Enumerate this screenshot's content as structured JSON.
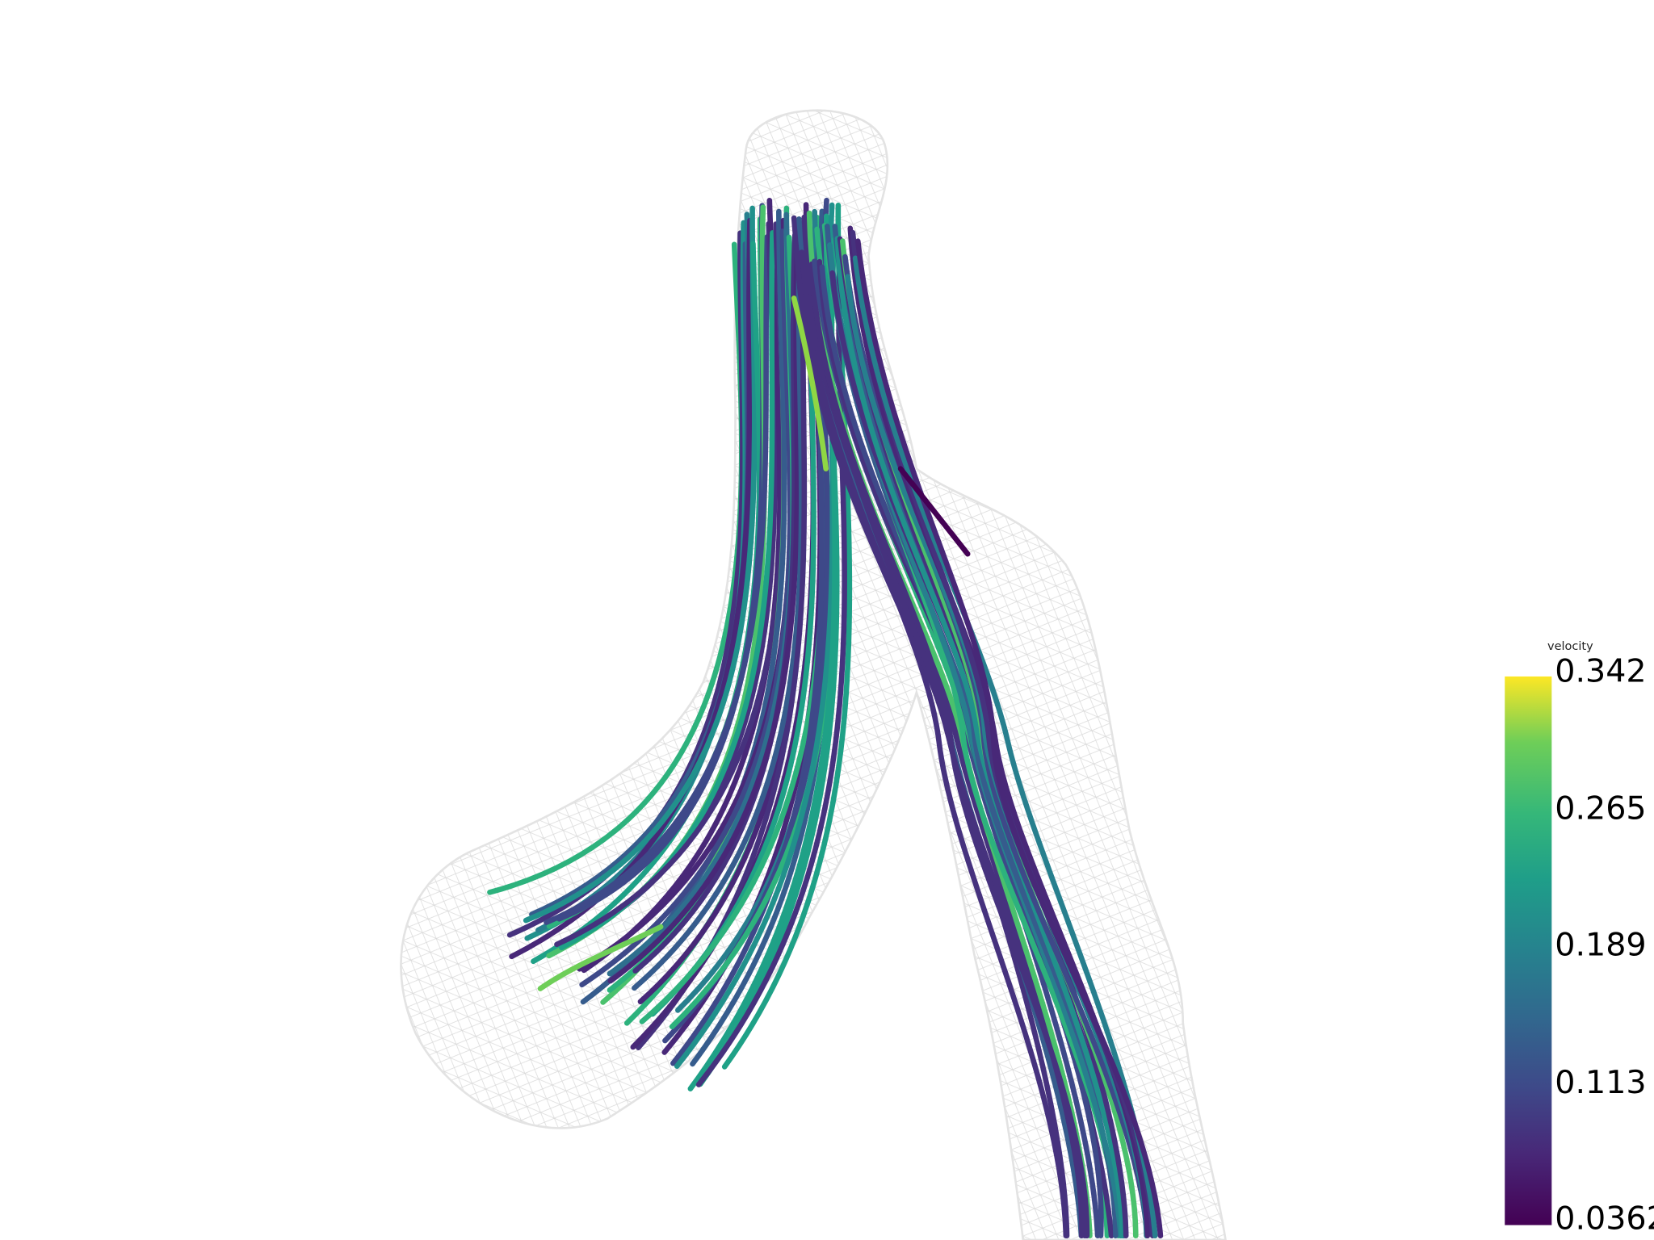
{
  "colorbar": {
    "title": "velocity",
    "labels": [
      "0.342",
      "0.265",
      "0.189",
      "0.113",
      "0.0362"
    ]
  }
}
